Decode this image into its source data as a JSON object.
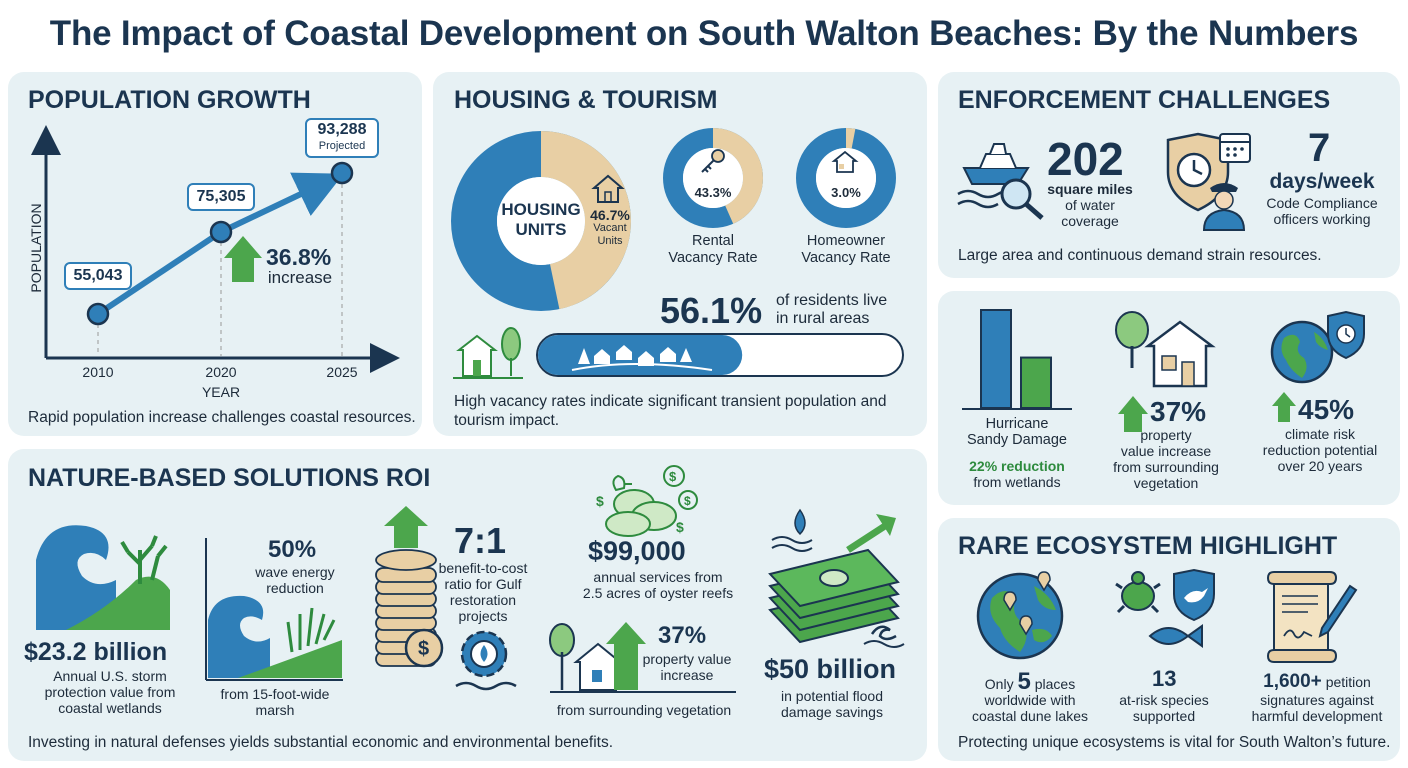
{
  "title": "The Impact of Coastal Development on South Walton Beaches: By the Numbers",
  "colors": {
    "blue": "#2f7fb8",
    "tan": "#e8cfa4",
    "green": "#4ca64c",
    "navy": "#1b3550",
    "panel": "#e7f1f4"
  },
  "population": {
    "heading": "POPULATION GROWTH",
    "ylabel": "POPULATION",
    "xlabel": "YEAR",
    "years": [
      "2010",
      "2020",
      "2025"
    ],
    "values": [
      "55,043",
      "75,305",
      "93,288"
    ],
    "projected": "Projected",
    "increase_pct": "36.8%",
    "increase_label": "increase",
    "caption": "Rapid population increase challenges coastal resources."
  },
  "housing": {
    "heading": "HOUSING & TOURISM",
    "donut_label_1": "HOUSING",
    "donut_label_2": "UNITS",
    "vacant_pct": "46.7%",
    "vacant_label_1": "Vacant",
    "vacant_label_2": "Units",
    "vacant_fraction": 0.467,
    "rental_pct": "43.3%",
    "rental_label_1": "Rental",
    "rental_label_2": "Vacancy Rate",
    "rental_fraction": 0.433,
    "owner_pct": "3.0%",
    "owner_label_1": "Homeowner",
    "owner_label_2": "Vacancy Rate",
    "owner_fraction": 0.03,
    "rural_pct": "56.1%",
    "rural_label_1": "of residents live",
    "rural_label_2": "in rural areas",
    "rural_fraction": 0.561,
    "caption_1": "High vacancy rates indicate significant transient population and",
    "caption_2": "tourism impact."
  },
  "enforcement": {
    "heading": "ENFORCEMENT CHALLENGES",
    "area_value": "202",
    "area_label_1": "square miles",
    "area_label_2": "of water",
    "area_label_3": "coverage",
    "days_value": "7",
    "days_unit": "days/week",
    "days_label_1": "Code Compliance",
    "days_label_2": "officers working",
    "caption": "Large area and continuous demand strain resources."
  },
  "impacts": {
    "hurricane_label_1": "Hurricane",
    "hurricane_label_2": "Sandy Damage",
    "hurricane_reduction": "22% reduction",
    "hurricane_from": "from wetlands",
    "hurricane_reduction_fraction": 0.22,
    "property_pct": "37%",
    "property_label_1": "property",
    "property_label_2": "value increase",
    "property_label_3": "from surrounding",
    "property_label_4": "vegetation",
    "climate_pct": "45%",
    "climate_label_1": "climate risk",
    "climate_label_2": "reduction potential",
    "climate_label_3": "over 20 years"
  },
  "nature": {
    "heading": "NATURE-BASED SOLUTIONS ROI",
    "wetlands_value": "$23.2 billion",
    "wetlands_label_1": "Annual U.S. storm",
    "wetlands_label_2": "protection value from",
    "wetlands_label_3": "coastal wetlands",
    "wave_pct": "50%",
    "wave_label_1": "wave energy",
    "wave_label_2": "reduction",
    "wave_from_1": "from 15-foot-wide",
    "wave_from_2": "marsh",
    "ratio_value": "7:1",
    "ratio_label_1": "benefit-to-cost",
    "ratio_label_2": "ratio for Gulf",
    "ratio_label_3": "restoration",
    "ratio_label_4": "projects",
    "oyster_value": "$99,000",
    "oyster_label_1": "annual services from",
    "oyster_label_2": "2.5 acres of oyster reefs",
    "veg_pct": "37%",
    "veg_label_1": "property value",
    "veg_label_2": "increase",
    "veg_from": "from surrounding vegetation",
    "flood_value": "$50 billion",
    "flood_label_1": "in potential flood",
    "flood_label_2": "damage savings",
    "caption": "Investing in natural defenses yields substantial economic and environmental benefits."
  },
  "rare": {
    "heading": "RARE ECOSYSTEM HIGHLIGHT",
    "places_pre": "Only",
    "places_value": "5",
    "places_post": "places",
    "places_label_1": "worldwide with",
    "places_label_2": "coastal dune lakes",
    "species_value": "13",
    "species_label_1": "at-risk species",
    "species_label_2": "supported",
    "petition_value": "1,600+",
    "petition_word": "petition",
    "petition_label": "signatures against",
    "petition_label_2": "harmful development",
    "caption": "Protecting unique ecosystems is vital for South Walton’s future."
  }
}
